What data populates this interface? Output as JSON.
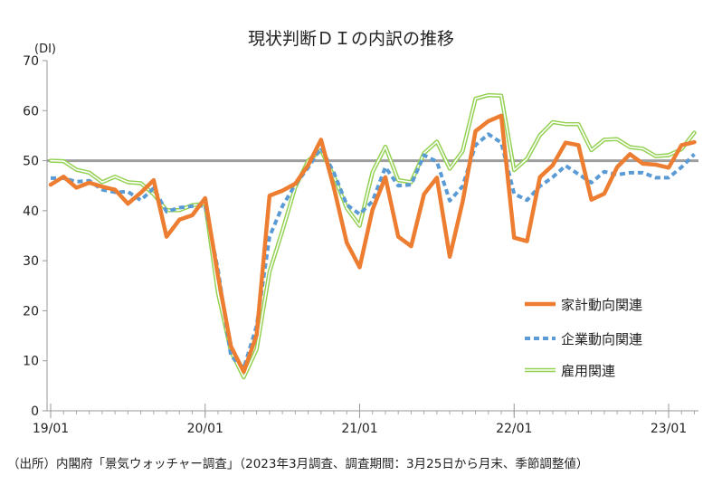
{
  "chart_data": {
    "type": "line",
    "title": "現状判断ＤＩの内訳の推移",
    "ylabel": "(DI)",
    "ylim": [
      0,
      70
    ],
    "yticks": [
      0,
      10,
      20,
      30,
      40,
      50,
      60,
      70
    ],
    "x_start": "2019-01",
    "x_end": "2023-03",
    "xtick_labels": [
      "19/01",
      "20/01",
      "21/01",
      "22/01",
      "23/01"
    ],
    "grid": false,
    "reference_line": 50,
    "legend_position": "lower-right",
    "x": [
      "2019-01",
      "2019-02",
      "2019-03",
      "2019-04",
      "2019-05",
      "2019-06",
      "2019-07",
      "2019-08",
      "2019-09",
      "2019-10",
      "2019-11",
      "2019-12",
      "2020-01",
      "2020-02",
      "2020-03",
      "2020-04",
      "2020-05",
      "2020-06",
      "2020-07",
      "2020-08",
      "2020-09",
      "2020-10",
      "2020-11",
      "2020-12",
      "2021-01",
      "2021-02",
      "2021-03",
      "2021-04",
      "2021-05",
      "2021-06",
      "2021-07",
      "2021-08",
      "2021-09",
      "2021-10",
      "2021-11",
      "2021-12",
      "2022-01",
      "2022-02",
      "2022-03",
      "2022-04",
      "2022-05",
      "2022-06",
      "2022-07",
      "2022-08",
      "2022-09",
      "2022-10",
      "2022-11",
      "2022-12",
      "2023-01",
      "2023-02",
      "2023-03"
    ],
    "series": [
      {
        "name": "家計動向関連",
        "color": "#ED7D31",
        "style": "solid-thick",
        "values": [
          45.2,
          46.8,
          44.6,
          45.6,
          44.8,
          44.2,
          41.4,
          43.6,
          46.1,
          34.8,
          38.2,
          39.1,
          42.5,
          26.9,
          12.9,
          7.8,
          15.2,
          43.0,
          44.0,
          45.4,
          49.1,
          54.2,
          44.6,
          33.6,
          28.7,
          40.2,
          46.7,
          34.8,
          32.9,
          43.3,
          46.6,
          30.8,
          41.8,
          55.9,
          57.9,
          59.0,
          34.6,
          33.9,
          46.7,
          49.1,
          53.6,
          53.1,
          42.2,
          43.4,
          48.7,
          51.3,
          49.4,
          49.2,
          48.6,
          53.1,
          53.7
        ]
      },
      {
        "name": "企業動向関連",
        "color": "#5B9BD5",
        "style": "dashed",
        "values": [
          46.5,
          46.5,
          45.8,
          46.0,
          44.2,
          43.7,
          43.8,
          42.1,
          44.5,
          39.8,
          40.6,
          40.9,
          41.0,
          28.2,
          11.0,
          8.5,
          17.0,
          34.8,
          40.9,
          45.2,
          48.6,
          52.6,
          47.6,
          41.2,
          39.3,
          41.9,
          48.7,
          45.0,
          45.2,
          51.1,
          49.8,
          42.0,
          44.9,
          53.1,
          55.3,
          53.6,
          43.4,
          42.1,
          44.9,
          46.7,
          49.0,
          47.3,
          45.6,
          47.8,
          47.2,
          47.6,
          47.6,
          46.6,
          46.6,
          48.7,
          51.3
        ]
      },
      {
        "name": "雇用関連",
        "color": "#92D050",
        "style": "double-line",
        "values": [
          50.0,
          49.9,
          48.2,
          47.6,
          45.7,
          46.8,
          45.7,
          45.5,
          43.3,
          40.1,
          40.1,
          41.1,
          41.4,
          23.5,
          11.9,
          6.7,
          12.3,
          27.8,
          36.0,
          44.7,
          50.0,
          52.1,
          46.9,
          40.5,
          37.0,
          47.7,
          52.8,
          46.1,
          45.7,
          51.5,
          53.8,
          48.4,
          51.9,
          62.4,
          63.1,
          63.0,
          48.1,
          50.4,
          55.1,
          57.7,
          57.3,
          57.3,
          52.1,
          54.2,
          54.3,
          52.7,
          52.4,
          50.9,
          51.1,
          52.3,
          55.6
        ]
      }
    ]
  },
  "footer": {
    "source": "（出所）内閣府「景気ウォッチャー調査」（2023年3月調査、調査期間：3月25日から月末、季節調整値）"
  }
}
